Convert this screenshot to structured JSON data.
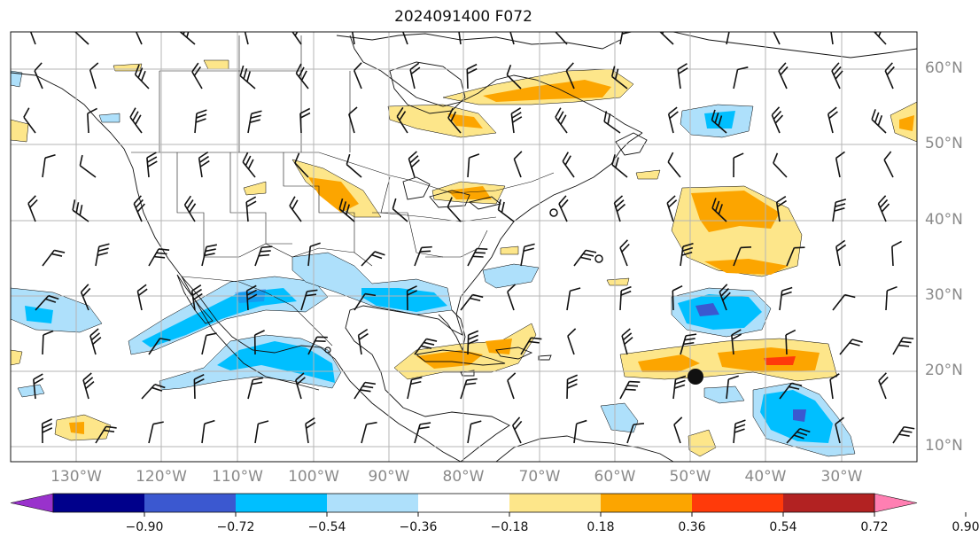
{
  "title": "2024091400 F072",
  "map": {
    "latitude_labels": [
      "60°N",
      "50°N",
      "40°N",
      "30°N",
      "20°N",
      "10°N"
    ],
    "longitude_labels": [
      "130°W",
      "120°W",
      "110°W",
      "100°W",
      "90°W",
      "80°W",
      "70°W",
      "60°W",
      "50°W",
      "40°W",
      "30°W"
    ],
    "positive_fill_colors": [
      "#fde68a",
      "#fca500",
      "#ff3a0a",
      "#b22222",
      "#ff7fb2"
    ],
    "negative_fill_colors": [
      "#aee0fb",
      "#00bfff",
      "#3b58d0",
      "#00008b",
      "#9b30d0"
    ],
    "storm_marker_color": "#111111",
    "wind_barb_color": "#111111",
    "coastline_color": "#111111",
    "grid_color": "#b5b5b5"
  },
  "colorbar": {
    "tick_labels": [
      "−0.90",
      "−0.72",
      "−0.54",
      "−0.36",
      "−0.18",
      "0.18",
      "0.36",
      "0.54",
      "0.72",
      "0.90"
    ],
    "colors": [
      "#9932cc",
      "#00008b",
      "#3b58d0",
      "#00bfff",
      "#aee0fb",
      "#ffffff",
      "#fde68a",
      "#fca500",
      "#ff3a0a",
      "#b22222",
      "#ff7fb2"
    ]
  }
}
